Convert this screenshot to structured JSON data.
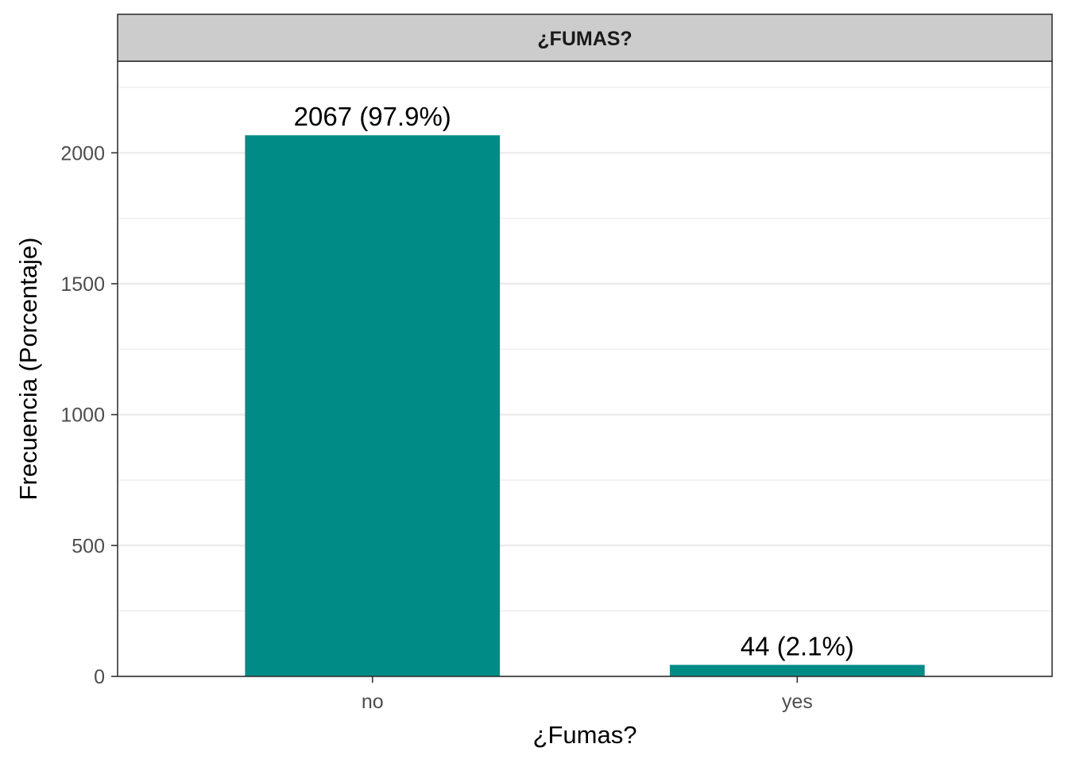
{
  "chart_data": {
    "type": "bar",
    "facet_label": "¿FUMAS?",
    "categories": [
      "no",
      "yes"
    ],
    "values": [
      2067,
      44
    ],
    "data_labels": [
      "2067 (97.9%)",
      "44 (2.1%)"
    ],
    "xlabel": "¿Fumas?",
    "ylabel": "Frecuencia (Porcentaje)",
    "ylim": [
      0,
      2350
    ],
    "yticks": [
      0,
      500,
      1000,
      1500,
      2000
    ],
    "ytick_labels": [
      "0",
      "500",
      "1000",
      "1500",
      "2000"
    ],
    "grid": true,
    "legend": "none",
    "bar_color": "#008B87",
    "strip_color": "#CCCCCC"
  }
}
